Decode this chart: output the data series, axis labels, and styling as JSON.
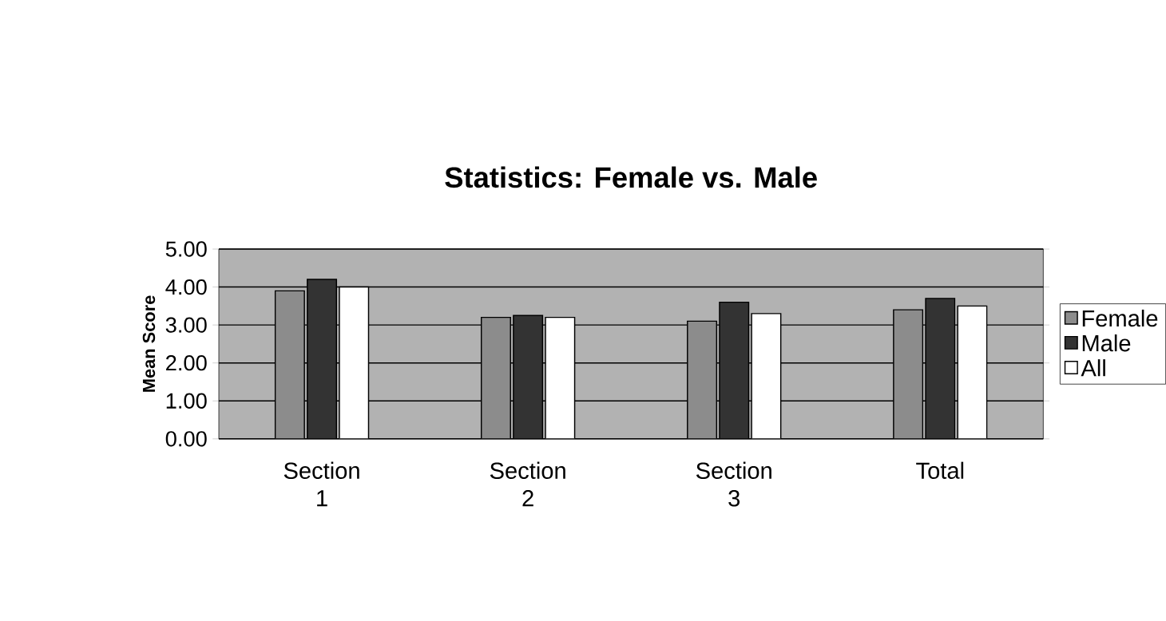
{
  "chart_data": {
    "type": "bar",
    "title": "Statistics:  Female vs. Male",
    "ylabel": "Mean Score",
    "categories": [
      "Section 1",
      "Section 2",
      "Section 3",
      "Total"
    ],
    "series": [
      {
        "name": "Female",
        "color": "#8c8c8c",
        "values": [
          3.9,
          3.2,
          3.1,
          3.4
        ]
      },
      {
        "name": "Male",
        "color": "#333333",
        "values": [
          4.2,
          3.25,
          3.6,
          3.7
        ]
      },
      {
        "name": "All",
        "color": "#ffffff",
        "values": [
          4.0,
          3.2,
          3.3,
          3.5
        ]
      }
    ],
    "ylim": [
      0,
      5
    ],
    "yticks": [
      {
        "value": 0,
        "label": "0.00"
      },
      {
        "value": 1,
        "label": "1.00"
      },
      {
        "value": 2,
        "label": "2.00"
      },
      {
        "value": 3,
        "label": "3.00"
      },
      {
        "value": 4,
        "label": "4.00"
      },
      {
        "value": 5,
        "label": "5.00"
      }
    ],
    "grid": "y",
    "legend": "right"
  }
}
